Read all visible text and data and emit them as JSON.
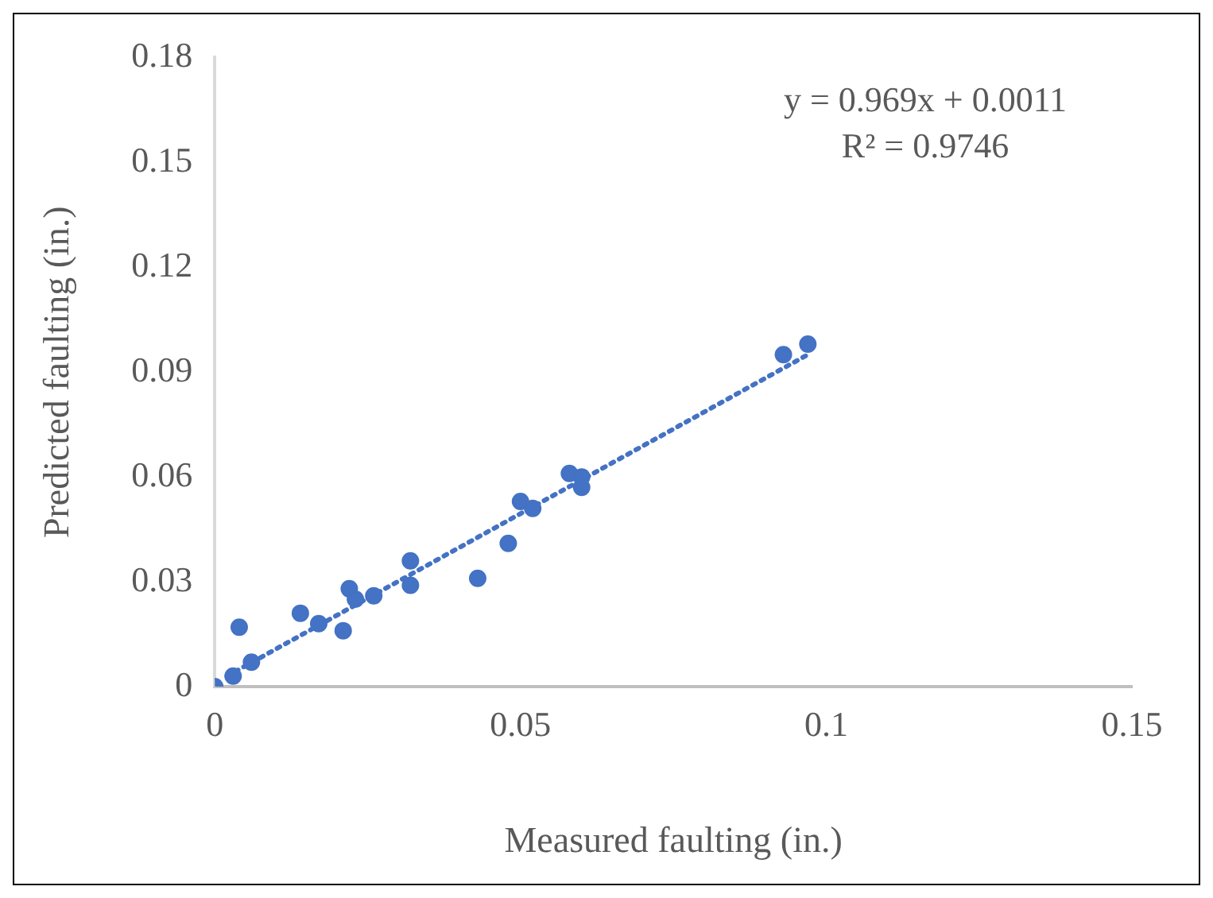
{
  "chart_data": {
    "type": "scatter",
    "xlabel": "Measured faulting (in.)",
    "ylabel": "Predicted faulting (in.)",
    "xlim": [
      0,
      0.15
    ],
    "xticks": [
      0,
      0.05,
      0.1,
      0.15
    ],
    "ylim": [
      0,
      0.18
    ],
    "yticks": [
      0,
      0.03,
      0.06,
      0.09,
      0.12,
      0.15,
      0.18
    ],
    "grid": false,
    "legend": false,
    "marker": "circle",
    "annotations": [
      "y = 0.969x + 0.0011",
      "R² = 0.9746"
    ],
    "series": [
      {
        "type": "scatter",
        "color": "#4472c4",
        "x": [
          0,
          0.003,
          0.004,
          0.006,
          0.014,
          0.017,
          0.021,
          0.022,
          0.023,
          0.026,
          0.032,
          0.032,
          0.043,
          0.048,
          0.05,
          0.052,
          0.058,
          0.06,
          0.06,
          0.093,
          0.097
        ],
        "values": [
          0,
          0.003,
          0.017,
          0.007,
          0.021,
          0.018,
          0.016,
          0.028,
          0.025,
          0.026,
          0.036,
          0.029,
          0.031,
          0.041,
          0.053,
          0.051,
          0.061,
          0.06,
          0.057,
          0.095,
          0.098
        ]
      },
      {
        "type": "line",
        "color": "#4472c4",
        "line_style": "dotted",
        "marker": "none",
        "x": [
          0.002,
          0.097
        ],
        "values": [
          0.003,
          0.095
        ]
      }
    ]
  }
}
